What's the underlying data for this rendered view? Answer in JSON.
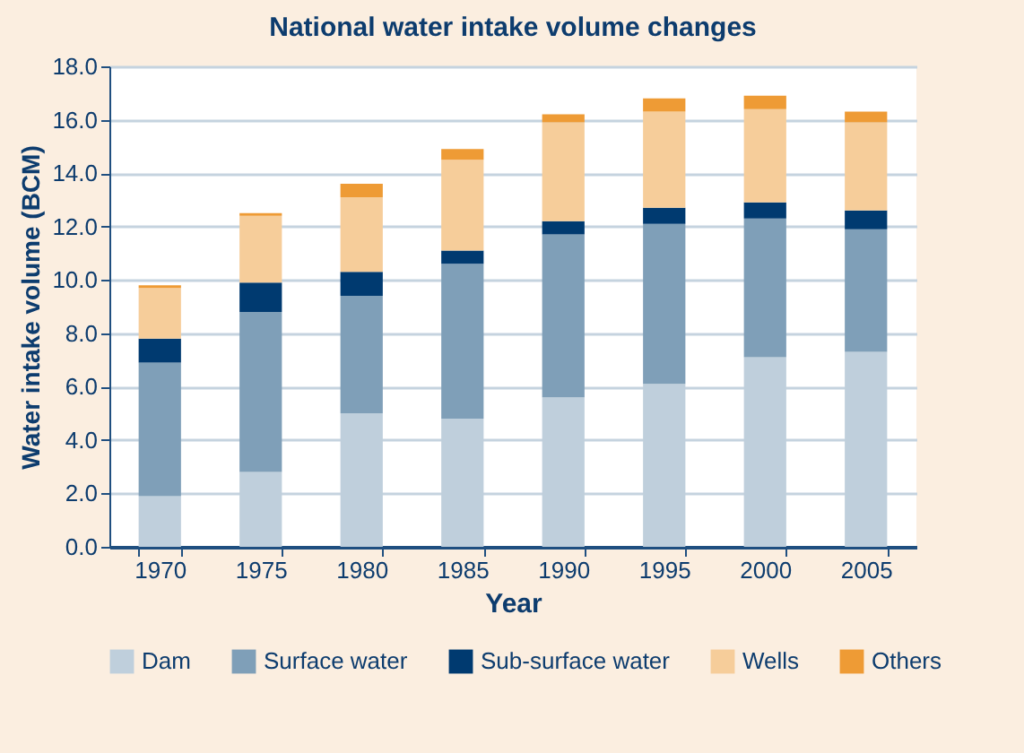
{
  "chart_data": {
    "type": "bar",
    "title": "National water intake volume changes",
    "xlabel": "Year",
    "ylabel": "Water intake volume (BCM)",
    "categories": [
      "1970",
      "1975",
      "1980",
      "1985",
      "1990",
      "1995",
      "2000",
      "2005"
    ],
    "stacked": true,
    "series": [
      {
        "name": "Dam",
        "color": "#bfcfdc",
        "values": [
          1.9,
          2.8,
          5.0,
          4.8,
          5.6,
          6.1,
          7.1,
          7.3
        ]
      },
      {
        "name": "Surface water",
        "color": "#7f9fb8",
        "values": [
          5.0,
          6.0,
          4.4,
          5.8,
          6.1,
          6.0,
          5.2,
          4.6
        ]
      },
      {
        "name": "Sub-surface water",
        "color": "#003a70",
        "values": [
          0.9,
          1.1,
          0.9,
          0.5,
          0.5,
          0.6,
          0.6,
          0.7
        ]
      },
      {
        "name": "Wells",
        "color": "#f6cd9a",
        "values": [
          1.9,
          2.5,
          2.8,
          3.4,
          3.7,
          3.6,
          3.5,
          3.3
        ]
      },
      {
        "name": "Others",
        "color": "#ee9b35",
        "values": [
          0.1,
          0.1,
          0.5,
          0.4,
          0.3,
          0.5,
          0.5,
          0.4
        ]
      }
    ],
    "ylim": [
      0,
      18
    ],
    "yticks": [
      {
        "value": 0,
        "label": "0.0"
      },
      {
        "value": 2,
        "label": "2.0"
      },
      {
        "value": 4,
        "label": "4.0"
      },
      {
        "value": 6,
        "label": "6.0"
      },
      {
        "value": 8,
        "label": "8.0"
      },
      {
        "value": 10,
        "label": "10.0"
      },
      {
        "value": 12,
        "label": "12.0"
      },
      {
        "value": 14,
        "label": "14.0"
      },
      {
        "value": 16,
        "label": "16.0"
      },
      {
        "value": 18,
        "label": "18.0"
      }
    ],
    "grid": "y",
    "legend": "bottom"
  }
}
